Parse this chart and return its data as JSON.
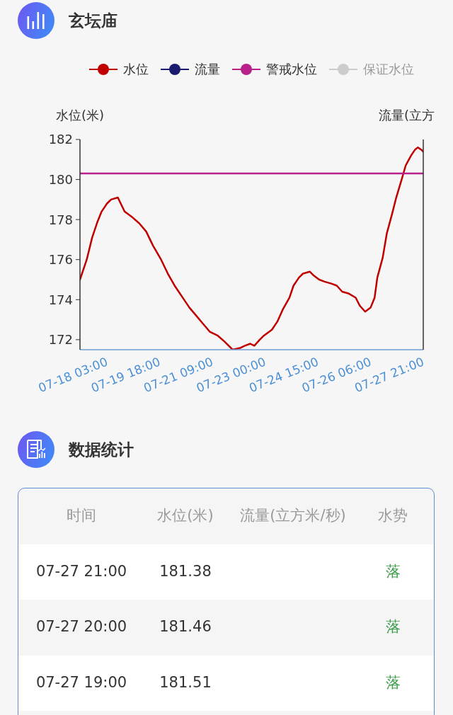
{
  "chart_data": [
    {
      "type": "line",
      "title": "玄坛庙",
      "ylabel": "水位(米)",
      "y2label": "流量(立方",
      "xlim": [
        "--07-17T07:00",
        "--07-27T21:00"
      ],
      "xticks": [
        {
          "value": "--07-18T03:00",
          "label": "07-18 03:00"
        },
        {
          "value": "--07-19T18:00",
          "label": "07-19 18:00"
        },
        {
          "value": "--07-21T09:00",
          "label": "07-21 09:00"
        },
        {
          "value": "--07-23T00:00",
          "label": "07-23 00:00"
        },
        {
          "value": "--07-24T15:00",
          "label": "07-24 15:00"
        },
        {
          "value": "--07-26T06:00",
          "label": "07-26 06:00"
        },
        {
          "value": "--07-27T21:00",
          "label": "07-27 21:00"
        }
      ],
      "ylim": [
        171.5,
        182
      ],
      "yticks": [
        172,
        174,
        176,
        178,
        180,
        182
      ],
      "series": [
        {
          "name": "水位",
          "color": "#c00000",
          "x": [
            "--07-17T07:00",
            "--07-17T12:00",
            "--07-17T16:00",
            "--07-17T20:00",
            "--07-17T23:00",
            "--07-18T03:00",
            "--07-18T06:00",
            "--07-18T11:00",
            "--07-18T16:00",
            "--07-18T22:00",
            "--07-19T03:00",
            "--07-19T08:00",
            "--07-19T13:00",
            "--07-19T19:00",
            "--07-20T00:00",
            "--07-20T05:00",
            "--07-20T10:00",
            "--07-20T16:00",
            "--07-20T21:00",
            "--07-21T02:00",
            "--07-21T07:00",
            "--07-21T13:00",
            "--07-21T18:00",
            "--07-22T00:00",
            "--07-22T06:00",
            "--07-22T09:00",
            "--07-22T13:00",
            "--07-22T16:00",
            "--07-22T20:00",
            "--07-22T23:00",
            "--07-23T05:00",
            "--07-23T09:00",
            "--07-23T13:00",
            "--07-23T18:00",
            "--07-23T21:00",
            "--07-24T01:00",
            "--07-24T04:00",
            "--07-24T09:00",
            "--07-24T12:00",
            "--07-24T16:00",
            "--07-24T20:00",
            "--07-25T01:00",
            "--07-25T05:00",
            "--07-25T09:00",
            "--07-25T14:00",
            "--07-25T19:00",
            "--07-25T22:00",
            "--07-26T02:00",
            "--07-26T06:00",
            "--07-26T09:00",
            "--07-26T11:00",
            "--07-26T15:00",
            "--07-26T18:00",
            "--07-26T22:00",
            "--07-27T01:00",
            "--07-27T05:00",
            "--07-27T08:00",
            "--07-27T12:00",
            "--07-27T15:00",
            "--07-27T17:00",
            "--07-27T19:00",
            "--07-27T20:00",
            "--07-27T21:00"
          ],
          "values": [
            175.0,
            176.0,
            177.1,
            177.9,
            178.4,
            178.8,
            179.0,
            179.1,
            178.4,
            178.1,
            177.8,
            177.4,
            176.7,
            176.0,
            175.3,
            174.7,
            174.2,
            173.6,
            173.2,
            172.8,
            172.4,
            172.2,
            171.9,
            171.5,
            171.6,
            171.7,
            171.8,
            171.7,
            172.0,
            172.2,
            172.5,
            172.9,
            173.5,
            174.1,
            174.7,
            175.1,
            175.3,
            175.4,
            175.2,
            175.0,
            174.9,
            174.8,
            174.7,
            174.4,
            174.3,
            174.1,
            173.7,
            173.4,
            173.6,
            174.1,
            175.1,
            176.1,
            177.3,
            178.3,
            179.1,
            180.0,
            180.7,
            181.2,
            181.5,
            181.6,
            181.51,
            181.46,
            181.38
          ]
        },
        {
          "name": "流量",
          "color": "#1a1a6e",
          "axis": "y2"
        },
        {
          "name": "警戒水位",
          "color": "#b8208a",
          "x": [
            "--07-17T07:00",
            "--07-27T21:00"
          ],
          "values": [
            180.3,
            180.3
          ]
        },
        {
          "name": "保证水位",
          "color": "#cccccc"
        }
      ],
      "legend": "top",
      "marker": "none",
      "line_style": "solid"
    },
    {
      "type": "other",
      "title": "数据统计",
      "annotations": [
        "时间",
        "水位(米)",
        "流量(立方米/秒)",
        "水势",
        "07-27 21:00",
        "181.38",
        "落",
        "07-27 20:00",
        "181.46",
        "落",
        "07-27 19:00",
        "181.51",
        "落"
      ]
    }
  ]
}
